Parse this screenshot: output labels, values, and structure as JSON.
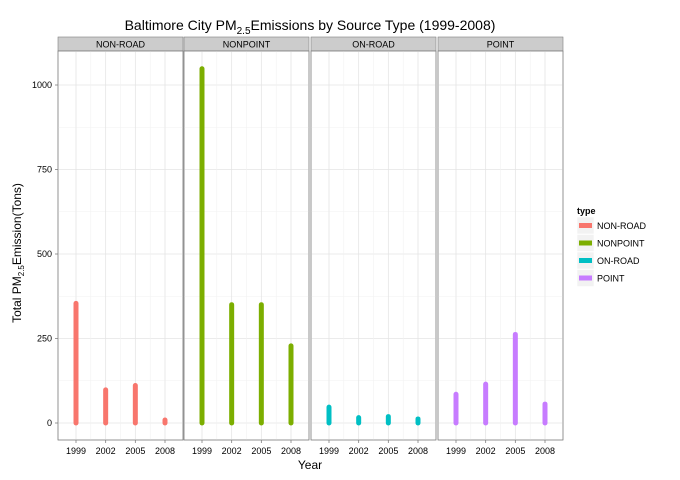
{
  "chart_data": {
    "type": "bar",
    "title": {
      "prefix": "Baltimore City PM",
      "subscript": "2.5",
      "suffix": "Emissions by Source Type (1999-2008)"
    },
    "xlabel": "Year",
    "ylabel": {
      "prefix": "Total PM",
      "subscript": "2.5",
      "suffix": "Emission(Tons)"
    },
    "categories": [
      "1999",
      "2002",
      "2005",
      "2008"
    ],
    "ylim": [
      0,
      1100
    ],
    "yticks": [
      0,
      250,
      500,
      750,
      1000
    ],
    "grid": true,
    "legend_position": "right",
    "legend_title": "type",
    "series": [
      {
        "name": "NON-ROAD",
        "color": "#F8766D",
        "values": [
          354,
          98,
          111,
          9
        ]
      },
      {
        "name": "NONPOINT",
        "color": "#7CAE00",
        "values": [
          1048,
          350,
          350,
          228
        ]
      },
      {
        "name": "ON-ROAD",
        "color": "#00BFC4",
        "values": [
          47,
          16,
          19,
          12
        ]
      },
      {
        "name": "POINT",
        "color": "#C77CFF",
        "values": [
          85,
          115,
          262,
          56
        ]
      }
    ]
  }
}
